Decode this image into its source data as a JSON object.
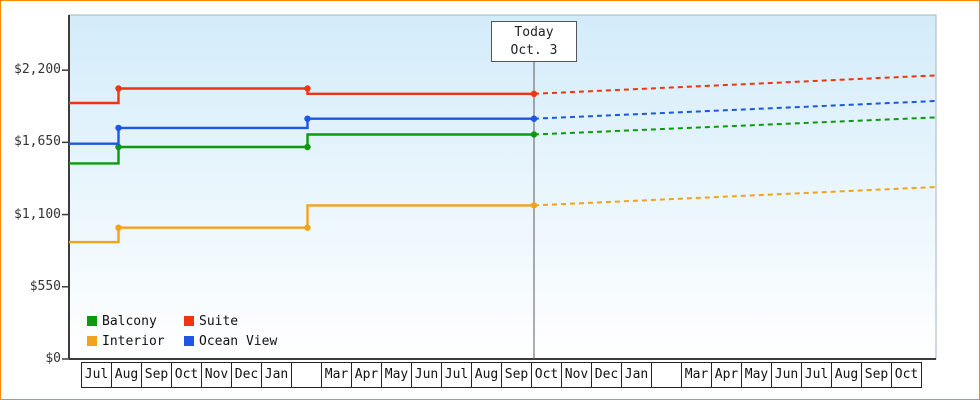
{
  "frame": {
    "border_color": "#ff8a00"
  },
  "today_marker": {
    "line1": "Today",
    "line2": "Oct. 3"
  },
  "legend": {
    "items": [
      {
        "label": "Balcony",
        "color": "#0c9a0c"
      },
      {
        "label": "Suite",
        "color": "#ee3510"
      },
      {
        "label": "Interior",
        "color": "#f2a31c"
      },
      {
        "label": "Ocean View",
        "color": "#1d56e2"
      }
    ]
  },
  "y_axis": {
    "tick_labels": [
      "$0",
      "$550",
      "$1,100",
      "$1,650",
      "$2,200"
    ],
    "tick_values": [
      0,
      550,
      1100,
      1650,
      2200
    ]
  },
  "x_axis": {
    "month_labels": [
      "Jul",
      "Aug",
      "Sep",
      "Oct",
      "Nov",
      "Dec",
      "Jan",
      "",
      "Mar",
      "Apr",
      "May",
      "Jun",
      "Jul",
      "Aug",
      "Sep",
      "Oct",
      "Nov",
      "Dec",
      "Jan",
      "",
      "Mar",
      "Apr",
      "May",
      "Jun",
      "Jul",
      "Aug",
      "Sep",
      "Oct"
    ]
  },
  "chart_data": {
    "type": "line",
    "x_unit": "month-cell index (0 = first Jul column)",
    "x_range_m": [
      -0.4,
      28.5
    ],
    "today_m": 15.1,
    "ylim": [
      0,
      2620
    ],
    "y_ticks": [
      0,
      550,
      1100,
      1650,
      2200
    ],
    "legend_position": "bottom-left inside plot",
    "grid": false,
    "series": [
      {
        "name": "Balcony",
        "color": "#0c9a0c",
        "history": [
          [
            -0.4,
            1490
          ],
          [
            1.25,
            1490
          ],
          [
            1.25,
            1615
          ],
          [
            7.55,
            1615
          ],
          [
            7.55,
            1710
          ],
          [
            15.1,
            1710
          ]
        ],
        "forecast": [
          [
            15.1,
            1710
          ],
          [
            28.5,
            1840
          ]
        ],
        "dots": [
          [
            1.25,
            1615
          ],
          [
            7.55,
            1615
          ],
          [
            15.1,
            1710
          ]
        ]
      },
      {
        "name": "Suite",
        "color": "#ee3510",
        "history": [
          [
            -0.4,
            1950
          ],
          [
            1.25,
            1950
          ],
          [
            1.25,
            2060
          ],
          [
            7.55,
            2060
          ],
          [
            7.55,
            2020
          ],
          [
            15.1,
            2020
          ]
        ],
        "forecast": [
          [
            15.1,
            2020
          ],
          [
            28.5,
            2160
          ]
        ],
        "dots": [
          [
            1.25,
            2060
          ],
          [
            7.55,
            2060
          ],
          [
            15.1,
            2020
          ]
        ]
      },
      {
        "name": "Interior",
        "color": "#f2a31c",
        "history": [
          [
            -0.4,
            890
          ],
          [
            1.25,
            890
          ],
          [
            1.25,
            1000
          ],
          [
            7.55,
            1000
          ],
          [
            7.55,
            1170
          ],
          [
            15.1,
            1170
          ]
        ],
        "forecast": [
          [
            15.1,
            1170
          ],
          [
            28.5,
            1310
          ]
        ],
        "dots": [
          [
            1.25,
            1000
          ],
          [
            7.55,
            1000
          ],
          [
            15.1,
            1170
          ]
        ]
      },
      {
        "name": "Ocean View",
        "color": "#1d56e2",
        "history": [
          [
            -0.4,
            1640
          ],
          [
            1.25,
            1640
          ],
          [
            1.25,
            1760
          ],
          [
            7.55,
            1760
          ],
          [
            7.55,
            1830
          ],
          [
            15.1,
            1830
          ]
        ],
        "forecast": [
          [
            15.1,
            1830
          ],
          [
            28.5,
            1965
          ]
        ],
        "dots": [
          [
            1.25,
            1760
          ],
          [
            7.55,
            1830
          ],
          [
            15.1,
            1830
          ]
        ]
      }
    ]
  }
}
